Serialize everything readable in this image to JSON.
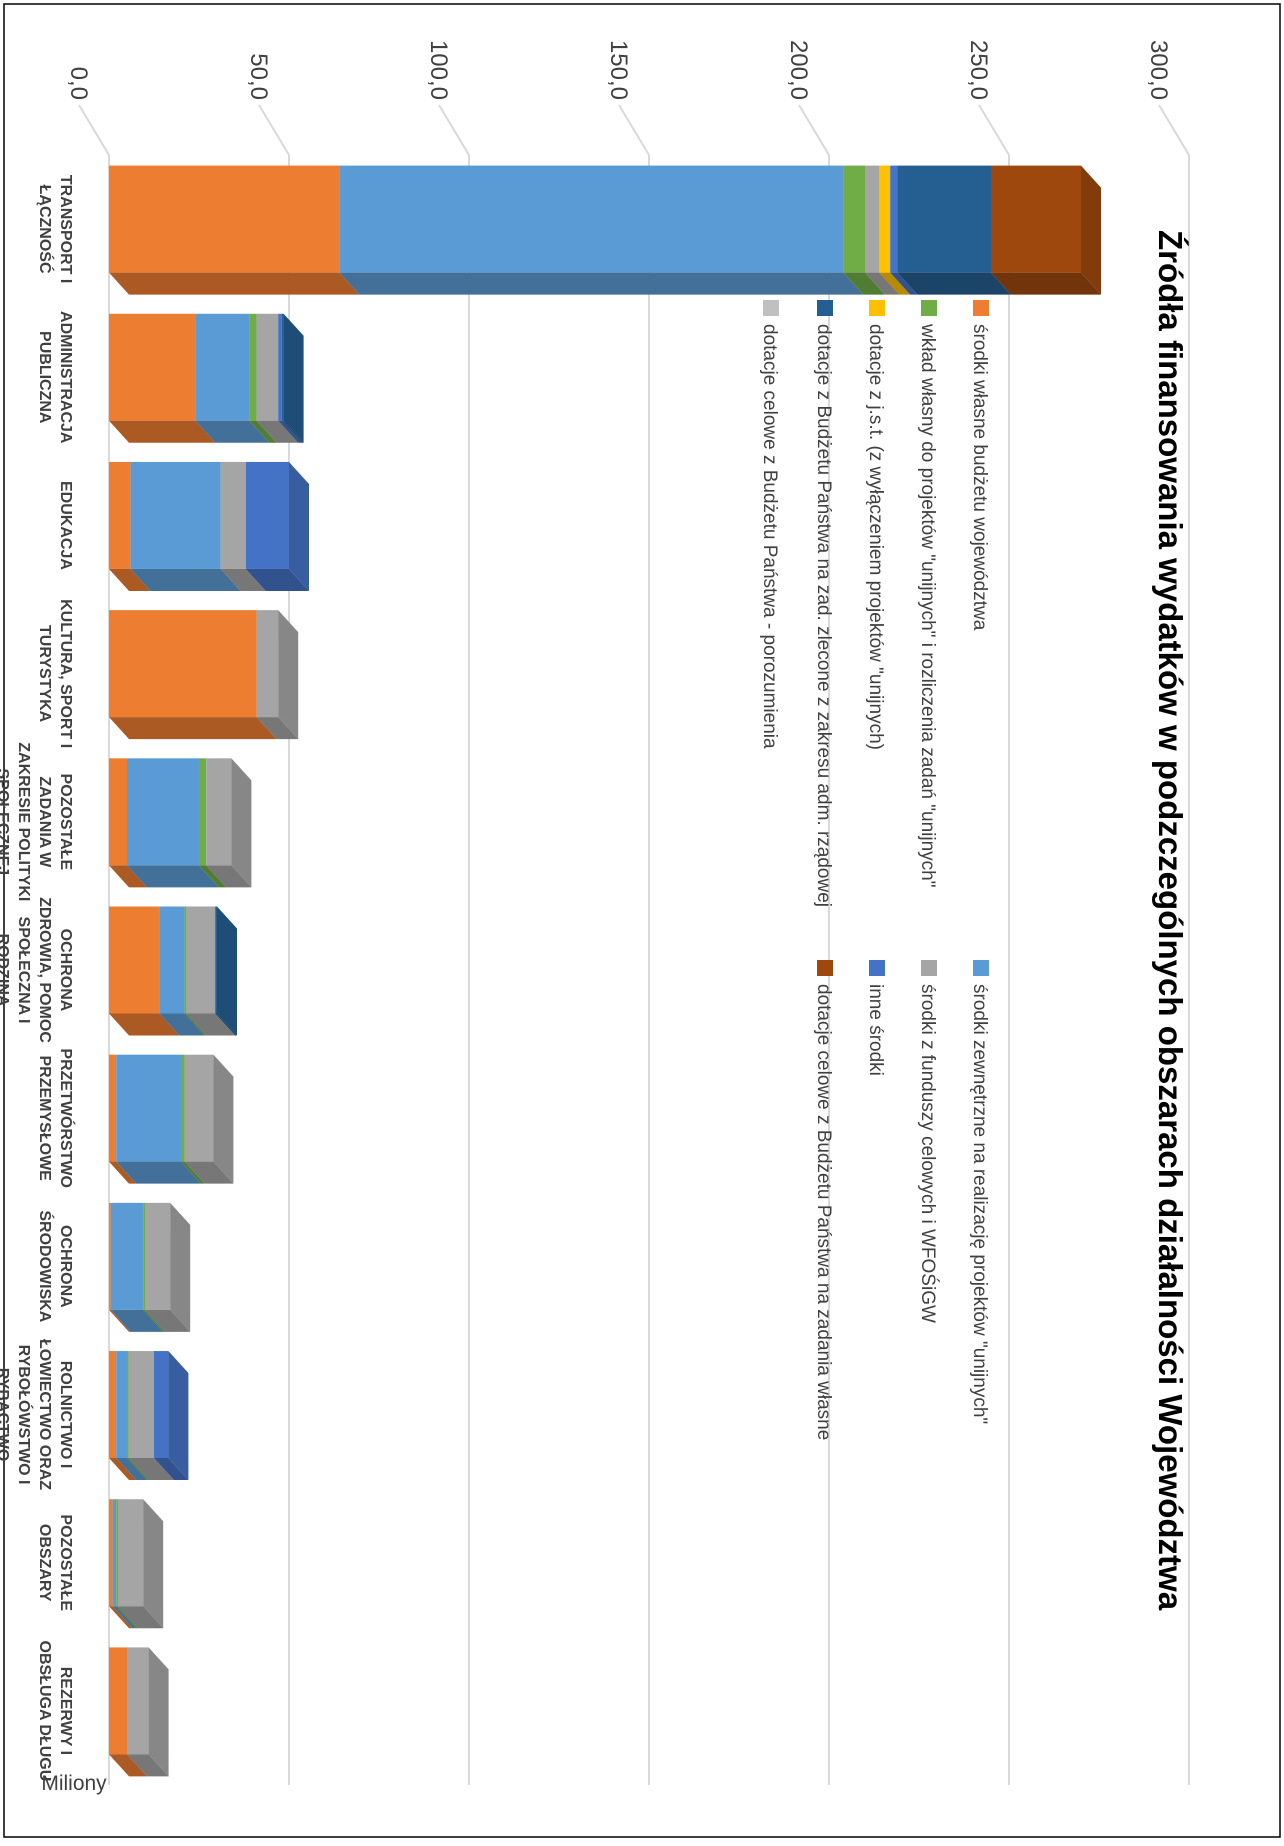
{
  "chart_data": {
    "type": "bar",
    "stacked": true,
    "rotated": "90deg-clockwise",
    "title": "Źródła finansowania wydatków w podzczególnych obszarach działalności Województwa",
    "ylabel": "Miliony",
    "ylim": [
      0,
      300
    ],
    "yticks": [
      "0,0",
      "50,0",
      "100,0",
      "150,0",
      "200,0",
      "250,0",
      "300,0"
    ],
    "grid": true,
    "legend_position": "top",
    "categories": [
      [
        "TRANSPORT I",
        "ŁĄCZNOŚĆ"
      ],
      [
        "ADMINISTRACJA",
        "PUBLICZNA"
      ],
      [
        "EDUKACJA"
      ],
      [
        "KULTURA, SPORT I",
        "TURYSTYKA"
      ],
      [
        "POZOSTAŁE",
        "ZADANIA W",
        "ZAKRESIE POLITYKI",
        "SPOŁECZNEJ"
      ],
      [
        "OCHRONA",
        "ZDROWIA, POMOC",
        "SPOŁECZNA I",
        "RODZINA"
      ],
      [
        "PRZETWÓRSTWO",
        "PRZEMYSŁOWE"
      ],
      [
        "OCHRONA",
        "ŚRODOWISKA"
      ],
      [
        "ROLNICTWO I",
        "ŁOWIECTWO ORAZ",
        "RYBOŁÓWSTWO I",
        "RYBACTWO"
      ],
      [
        "POZOSTAŁE",
        "OBSZARY"
      ],
      [
        "REZERWY I",
        "OBSŁUGA DŁUGU"
      ]
    ],
    "series": [
      {
        "name": "środki własne budżetu województwa",
        "color": "#ED7D31",
        "values": [
          64,
          24,
          6,
          41,
          5,
          14,
          2,
          0.5,
          2,
          1,
          5
        ]
      },
      {
        "name": "środki zewnętrzne na realizację projektów \"unijnych\"",
        "color": "#5B9BD5",
        "values": [
          140,
          15,
          25,
          0,
          20,
          7,
          18,
          9,
          3,
          1,
          0
        ]
      },
      {
        "name": "wkład własny do projektów \"unijnych\" i rozliczenia zadań \"unijnych\"",
        "color": "#70AD47",
        "values": [
          6,
          2,
          0,
          0,
          2,
          0.5,
          1,
          0.5,
          0.5,
          0.5,
          0
        ]
      },
      {
        "name": "środki z funduszy celowych i WFOŚiGW",
        "color": "#A5A5A5",
        "values": [
          4,
          6,
          7,
          6,
          7,
          8,
          8,
          7,
          7,
          7,
          6
        ]
      },
      {
        "name": "dotacje z j.s.t. (z wyłączeniem projektów \"unijnych)",
        "color": "#FFC000",
        "values": [
          3,
          0,
          0,
          0,
          0,
          0,
          0,
          0,
          0,
          0,
          0
        ]
      },
      {
        "name": "inne środki",
        "color": "#4472C4",
        "values": [
          2,
          1,
          12,
          0,
          0,
          0,
          0,
          0,
          4,
          0,
          0
        ]
      },
      {
        "name": "dotacje z Budżetu Państwa na zad. zlecone z zakresu adm. rządowej",
        "color": "#255E91",
        "values": [
          26,
          0.5,
          0,
          0,
          0,
          0.5,
          0,
          0,
          0,
          0,
          0
        ]
      },
      {
        "name": "dotacje celowe z Budżetu Państwa na zadania własne",
        "color": "#9E480E",
        "values": [
          25,
          0,
          0,
          0,
          0,
          0,
          0,
          0,
          0,
          0,
          0
        ]
      },
      {
        "name": "dotacje celowe z Budżetu Państwa - porozumienia",
        "color": "#C0C0C0",
        "values": [
          0,
          0,
          0,
          0,
          0,
          0,
          0,
          0,
          0,
          0,
          0
        ]
      }
    ]
  }
}
